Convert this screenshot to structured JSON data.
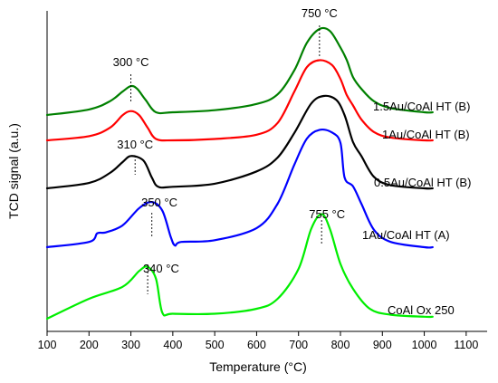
{
  "chart_data": {
    "type": "line",
    "xlabel": "Temperature (°C)",
    "ylabel": "TCD signal (a.u.)",
    "xlim": [
      100,
      1150
    ],
    "x_ticks": [
      100,
      200,
      300,
      400,
      500,
      600,
      700,
      800,
      900,
      1000,
      1100
    ],
    "x_tick_labels": [
      "100",
      "200",
      "300",
      "400",
      "500",
      "600",
      "700",
      "800",
      "900",
      "1000",
      "1100"
    ],
    "y_ticks_shown": false,
    "grid": false,
    "y_units": "a.u. (curves offset vertically)",
    "series": [
      {
        "name": "1.5Au/CoAl HT (B)",
        "color": "#008000",
        "points": [
          [
            100,
            0.0
          ],
          [
            200,
            0.08
          ],
          [
            250,
            0.2
          ],
          [
            280,
            0.34
          ],
          [
            300,
            0.42
          ],
          [
            315,
            0.38
          ],
          [
            335,
            0.22
          ],
          [
            360,
            0.04
          ],
          [
            400,
            0.04
          ],
          [
            500,
            0.07
          ],
          [
            600,
            0.16
          ],
          [
            650,
            0.3
          ],
          [
            690,
            0.65
          ],
          [
            720,
            1.05
          ],
          [
            750,
            1.25
          ],
          [
            775,
            1.22
          ],
          [
            800,
            0.98
          ],
          [
            815,
            0.8
          ],
          [
            830,
            0.55
          ],
          [
            850,
            0.38
          ],
          [
            880,
            0.2
          ],
          [
            920,
            0.1
          ],
          [
            1000,
            0.04
          ],
          [
            1020,
            0.04
          ]
        ]
      },
      {
        "name": "1Au/CoAl HT (B)",
        "color": "#ff0000",
        "points": [
          [
            100,
            0.0
          ],
          [
            200,
            0.06
          ],
          [
            250,
            0.18
          ],
          [
            280,
            0.36
          ],
          [
            300,
            0.42
          ],
          [
            320,
            0.36
          ],
          [
            340,
            0.18
          ],
          [
            360,
            0.02
          ],
          [
            400,
            0.0
          ],
          [
            500,
            0.02
          ],
          [
            600,
            0.08
          ],
          [
            650,
            0.25
          ],
          [
            690,
            0.7
          ],
          [
            720,
            1.05
          ],
          [
            750,
            1.15
          ],
          [
            780,
            1.08
          ],
          [
            800,
            0.88
          ],
          [
            815,
            0.65
          ],
          [
            830,
            0.5
          ],
          [
            850,
            0.3
          ],
          [
            880,
            0.12
          ],
          [
            920,
            0.04
          ],
          [
            1000,
            0.0
          ],
          [
            1020,
            0.0
          ]
        ]
      },
      {
        "name": "0.5Au/CoAl HT (B)",
        "color": "#000000",
        "points": [
          [
            100,
            0.0
          ],
          [
            200,
            0.07
          ],
          [
            250,
            0.2
          ],
          [
            280,
            0.34
          ],
          [
            300,
            0.42
          ],
          [
            330,
            0.36
          ],
          [
            350,
            0.14
          ],
          [
            365,
            0.02
          ],
          [
            400,
            0.02
          ],
          [
            500,
            0.06
          ],
          [
            600,
            0.22
          ],
          [
            650,
            0.4
          ],
          [
            690,
            0.72
          ],
          [
            730,
            1.1
          ],
          [
            760,
            1.2
          ],
          [
            790,
            1.15
          ],
          [
            810,
            0.95
          ],
          [
            830,
            0.6
          ],
          [
            850,
            0.42
          ],
          [
            880,
            0.15
          ],
          [
            920,
            0.04
          ],
          [
            1000,
            0.0
          ],
          [
            1020,
            0.0
          ]
        ]
      },
      {
        "name": "1Au/CoAl HT (A)",
        "color": "#0000ff",
        "points": [
          [
            100,
            0.0
          ],
          [
            200,
            0.06
          ],
          [
            220,
            0.16
          ],
          [
            240,
            0.17
          ],
          [
            280,
            0.25
          ],
          [
            320,
            0.45
          ],
          [
            350,
            0.52
          ],
          [
            375,
            0.42
          ],
          [
            395,
            0.12
          ],
          [
            405,
            0.02
          ],
          [
            420,
            0.06
          ],
          [
            500,
            0.08
          ],
          [
            600,
            0.22
          ],
          [
            650,
            0.5
          ],
          [
            690,
            0.95
          ],
          [
            720,
            1.25
          ],
          [
            750,
            1.35
          ],
          [
            780,
            1.32
          ],
          [
            800,
            1.2
          ],
          [
            810,
            0.8
          ],
          [
            830,
            0.7
          ],
          [
            850,
            0.5
          ],
          [
            880,
            0.2
          ],
          [
            920,
            0.06
          ],
          [
            1000,
            0.0
          ],
          [
            1020,
            0.0
          ]
        ]
      },
      {
        "name": "CoAl Ox 250",
        "color": "#00ee00",
        "points": [
          [
            100,
            0.0
          ],
          [
            200,
            0.2
          ],
          [
            280,
            0.32
          ],
          [
            320,
            0.48
          ],
          [
            340,
            0.52
          ],
          [
            360,
            0.4
          ],
          [
            375,
            0.06
          ],
          [
            400,
            0.05
          ],
          [
            500,
            0.05
          ],
          [
            600,
            0.1
          ],
          [
            650,
            0.2
          ],
          [
            700,
            0.5
          ],
          [
            730,
            0.9
          ],
          [
            755,
            1.05
          ],
          [
            775,
            0.9
          ],
          [
            800,
            0.55
          ],
          [
            830,
            0.3
          ],
          [
            870,
            0.1
          ],
          [
            920,
            0.04
          ],
          [
            1000,
            0.02
          ],
          [
            1020,
            0.02
          ]
        ]
      }
    ],
    "annotations": [
      {
        "text": "750 °C",
        "x": 750,
        "series": 0,
        "line": true
      },
      {
        "text": "300 °C",
        "x": 300,
        "series": 0,
        "line": true
      },
      {
        "text": "310 °C",
        "x": 310,
        "series": 2,
        "line": true
      },
      {
        "text": "350 °C",
        "x": 350,
        "series": 3,
        "line": true
      },
      {
        "text": "755 °C",
        "x": 755,
        "series": 4,
        "line": true
      },
      {
        "text": "340 °C",
        "x": 340,
        "series": 4,
        "line": true
      }
    ]
  }
}
